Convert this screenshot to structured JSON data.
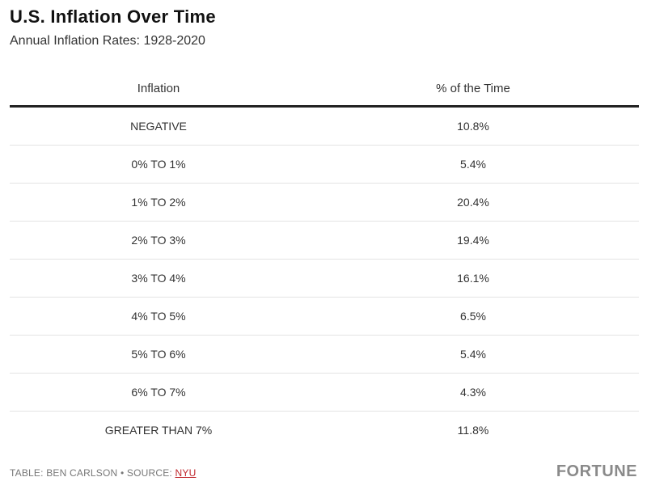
{
  "title": "U.S. Inflation Over Time",
  "subtitle": "Annual Inflation Rates: 1928-2020",
  "chart_data": {
    "type": "table",
    "title": "U.S. Inflation Over Time",
    "subtitle": "Annual Inflation Rates: 1928-2020",
    "columns": [
      "Inflation",
      "% of the Time"
    ],
    "rows": [
      {
        "range": "NEGATIVE",
        "pct": "10.8%"
      },
      {
        "range": "0% TO 1%",
        "pct": "5.4%"
      },
      {
        "range": "1% TO 2%",
        "pct": "20.4%"
      },
      {
        "range": "2% TO 3%",
        "pct": "19.4%"
      },
      {
        "range": "3% TO 4%",
        "pct": "16.1%"
      },
      {
        "range": "4% TO 5%",
        "pct": "6.5%"
      },
      {
        "range": "5% TO 6%",
        "pct": "5.4%"
      },
      {
        "range": "6% TO 7%",
        "pct": "4.3%"
      },
      {
        "range": "GREATER THAN 7%",
        "pct": "11.8%"
      }
    ]
  },
  "footer": {
    "prefix": "TABLE: BEN CARLSON • SOURCE: ",
    "source_link": "NYU"
  },
  "logo": "FORTUNE",
  "colors": {
    "link": "#c0272d",
    "header_rule": "#222222",
    "row_divider": "#e4e4e4"
  }
}
